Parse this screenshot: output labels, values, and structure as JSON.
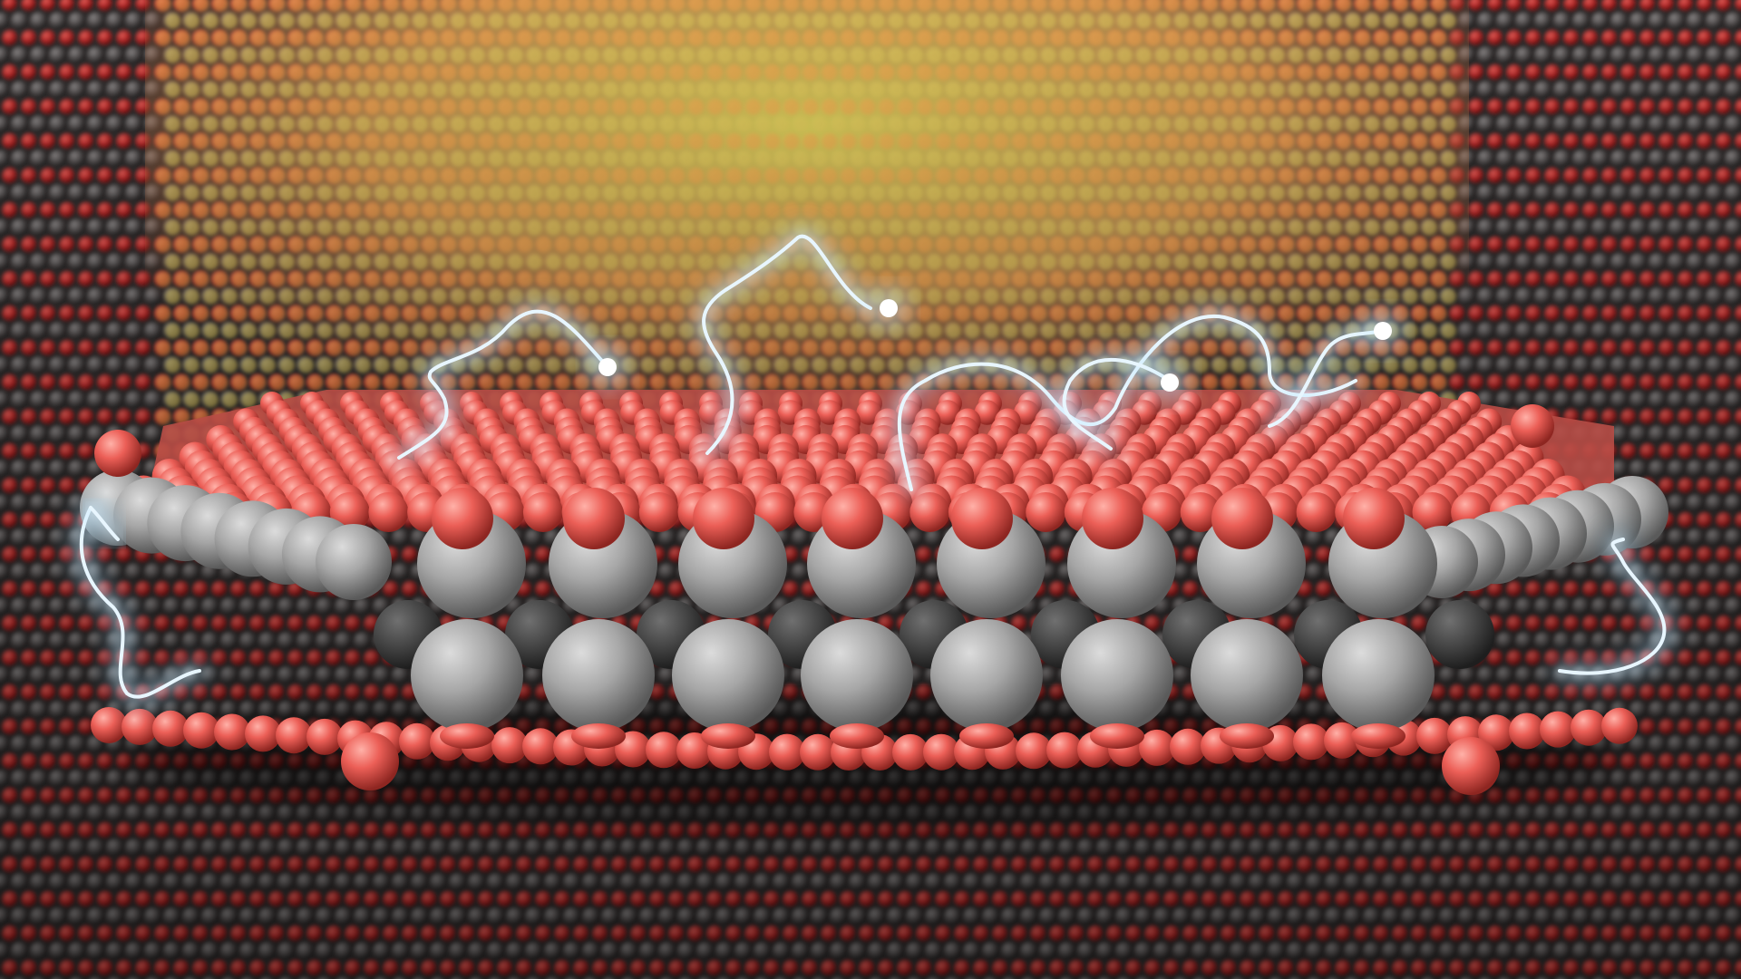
{
  "scene": {
    "subject": "oxide-monolayer-with-electron-trails",
    "colors": {
      "lattice_bg": "#2d2929",
      "lattice_oxygen": "#b5262a",
      "lattice_metal": "#5a5656",
      "glow_yellow": "#c9b94a",
      "glow_orange": "#d98a58",
      "slab_oxygen": "#ec5f57",
      "slab_metal_light": "#a9a9a9",
      "slab_metal_dark": "#4a4a4a",
      "trail": "#e8f6ff",
      "trail_glow": "#9fdcff"
    },
    "trail_count": 8,
    "electron_count": 4
  }
}
